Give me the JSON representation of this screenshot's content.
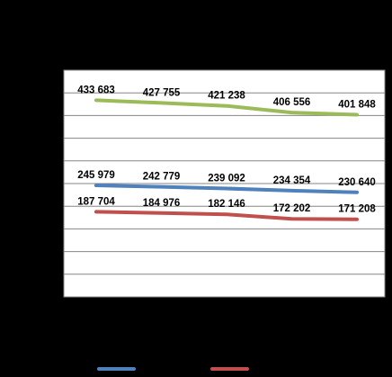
{
  "chart_data": {
    "type": "line",
    "categories": [
      "",
      "",
      "",
      "",
      ""
    ],
    "series": [
      {
        "color": "#9BBB59",
        "values": [
          433683,
          427755,
          421238,
          406556,
          401848
        ],
        "labels": [
          "433 683",
          "427 755",
          "421 238",
          "406 556",
          "401 848"
        ]
      },
      {
        "color": "#4F81BD",
        "values": [
          245979,
          242779,
          239092,
          234354,
          230640
        ],
        "labels": [
          "245 979",
          "242 779",
          "239 092",
          "234 354",
          "230 640"
        ]
      },
      {
        "color": "#C0504D",
        "values": [
          187704,
          184976,
          182146,
          172202,
          171208
        ],
        "labels": [
          "187 704",
          "184 976",
          "182 146",
          "172 202",
          "171 208"
        ]
      }
    ],
    "ylim": [
      0,
      500000
    ],
    "y_gridline_step": 50000,
    "grid": true,
    "legend": "bottom",
    "title": "",
    "xlabel": "",
    "ylabel": ""
  },
  "colors": {
    "background": "#000000",
    "plot_area": "#FFFFFF",
    "gridline": "#868686"
  }
}
